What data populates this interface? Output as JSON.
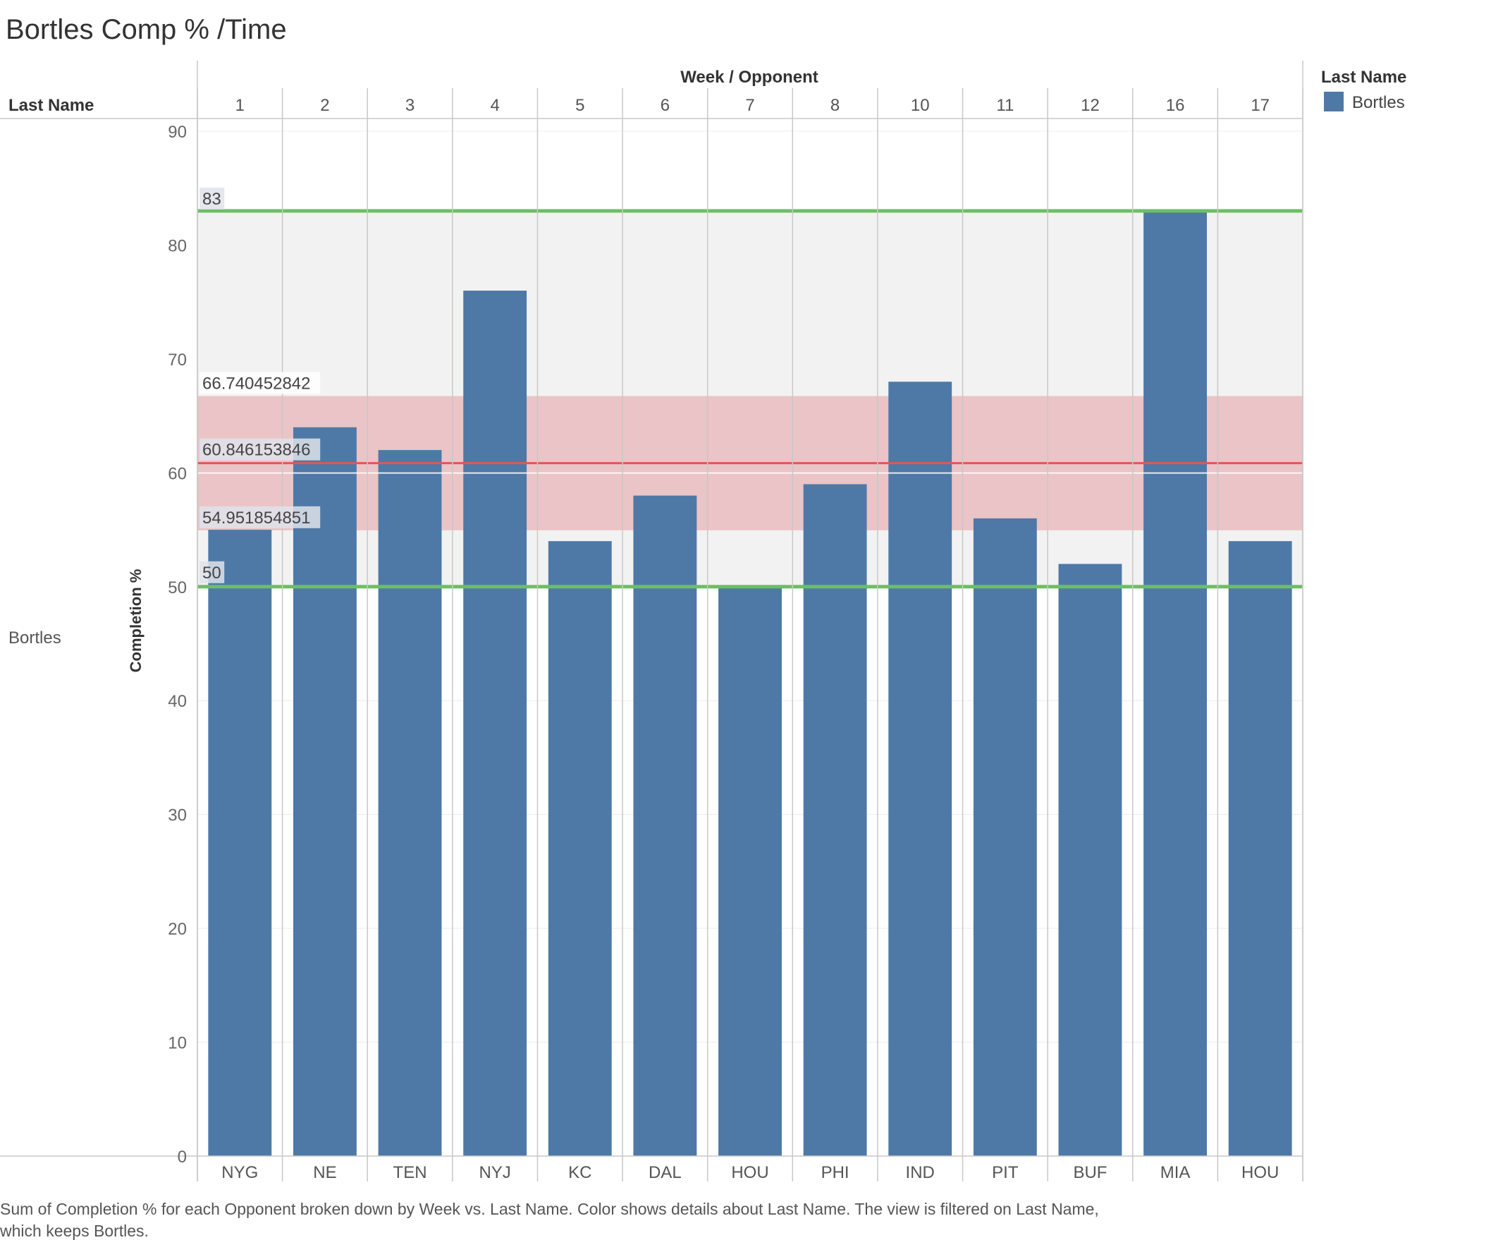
{
  "title": "Bortles Comp % /Time",
  "row_header": "Last Name",
  "column_header": "Week / Opponent",
  "row_label": "Bortles",
  "y_axis_label": "Completion %",
  "legend": {
    "title": "Last Name",
    "items": [
      {
        "label": "Bortles",
        "color": "#4e79a7"
      }
    ]
  },
  "caption": "Sum of Completion % for each Opponent broken down by Week vs. Last Name.  Color shows details about Last Name. The view is filtered on Last Name, which keeps Bortles.",
  "colors": {
    "bar": "#4e79a7",
    "range_band": "#f2f2f2",
    "distribution_band": "#eac4c6",
    "mean_line": "#e15759",
    "min_max_line": "#6cbf62"
  },
  "chart_data": {
    "type": "bar",
    "weeks": [
      "1",
      "2",
      "3",
      "4",
      "5",
      "6",
      "7",
      "8",
      "10",
      "11",
      "12",
      "16",
      "17"
    ],
    "categories": [
      "NYG",
      "NE",
      "TEN",
      "NYJ",
      "KC",
      "DAL",
      "HOU",
      "PHI",
      "IND",
      "PIT",
      "BUF",
      "MIA",
      "HOU"
    ],
    "series": [
      {
        "name": "Bortles",
        "values": [
          55,
          64,
          62,
          76,
          54,
          58,
          50,
          59,
          68,
          56,
          52,
          83,
          54
        ]
      }
    ],
    "ylim": [
      0,
      90
    ],
    "yticks": [
      0,
      10,
      20,
      30,
      40,
      50,
      60,
      70,
      80,
      90
    ],
    "reference_lines": [
      {
        "kind": "max",
        "value": 83,
        "label": "83"
      },
      {
        "kind": "band-upper",
        "value": 66.740452842,
        "label": "66.740452842"
      },
      {
        "kind": "mean",
        "value": 60.846153846,
        "label": "60.846153846"
      },
      {
        "kind": "band-lower",
        "value": 54.951854851,
        "label": "54.951854851"
      },
      {
        "kind": "min",
        "value": 50,
        "label": "50"
      }
    ],
    "grid": true,
    "legend_position": "top-right"
  }
}
